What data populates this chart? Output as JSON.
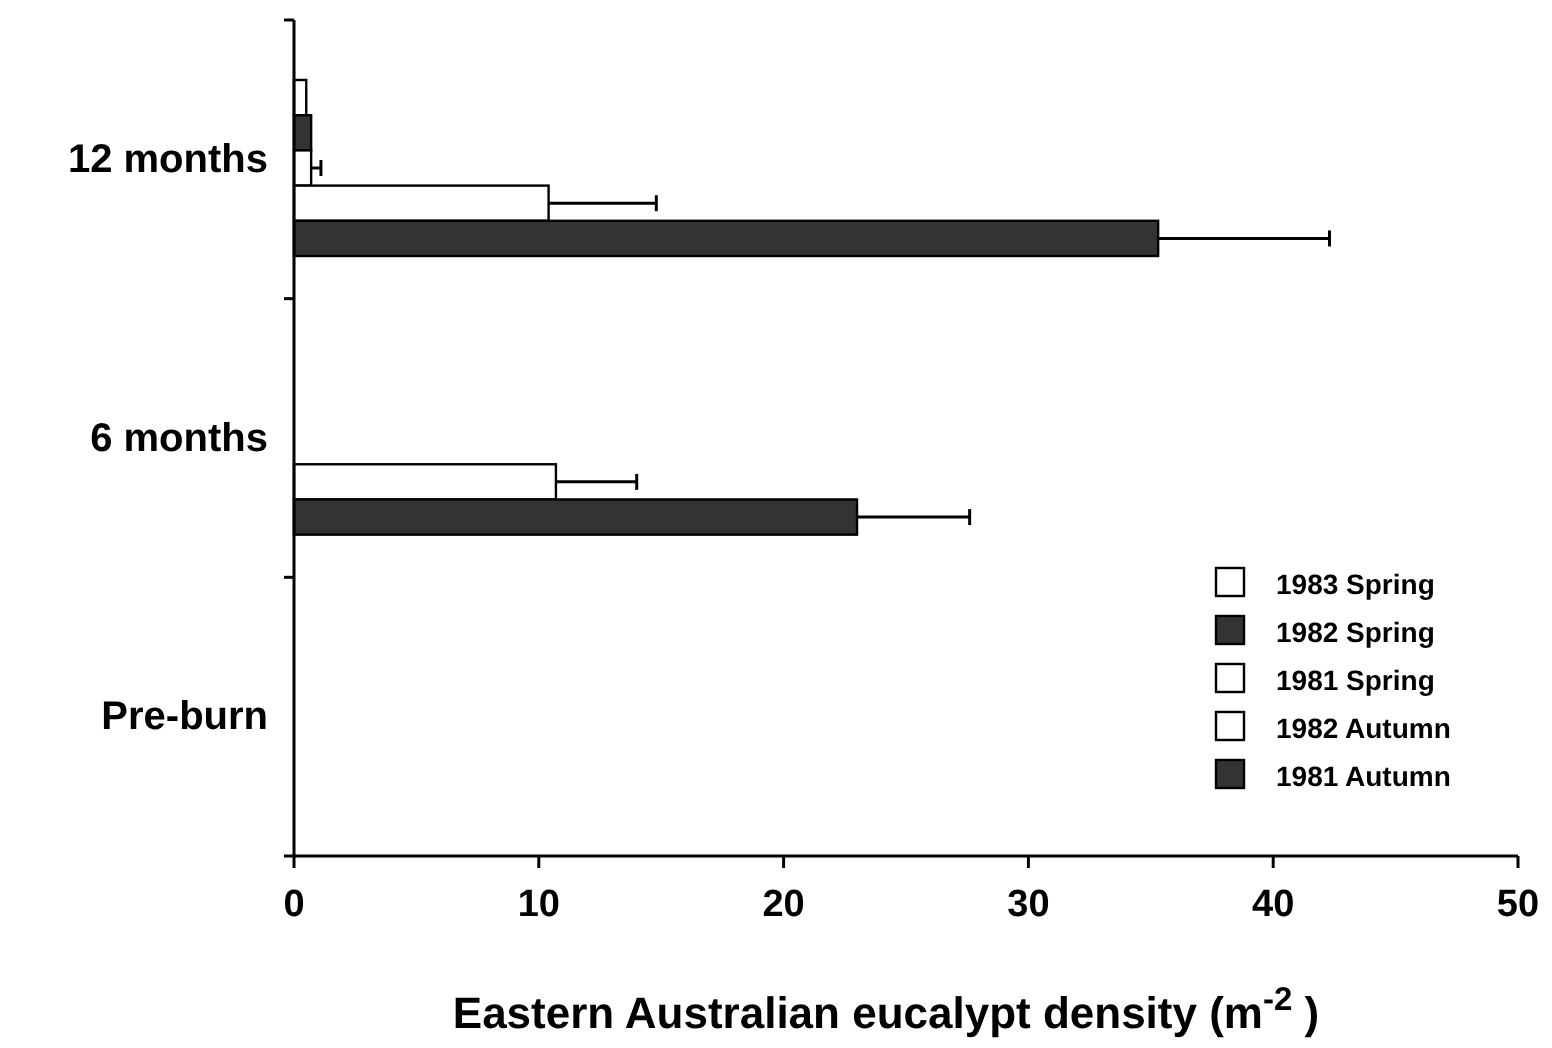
{
  "chart_data": {
    "type": "bar",
    "orientation": "horizontal",
    "xlabel": "Eastern Australian eucalypt density (m$^{-2}$ )",
    "categories": [
      "12 months",
      "6 months",
      "Pre-burn"
    ],
    "series": [
      {
        "name": "1983 Spring",
        "color": "#ffffff",
        "values": [
          0.5,
          null,
          null
        ]
      },
      {
        "name": "1982 Spring",
        "color": "#333333",
        "values": [
          0.7,
          null,
          null
        ]
      },
      {
        "name": "1981 Spring",
        "color": "#ffffff",
        "values": [
          0.7,
          null,
          null
        ],
        "errors": [
          [
            0.7,
            1.1
          ],
          null,
          null
        ]
      },
      {
        "name": "1982 Autumn",
        "color": "#ffffff",
        "values": [
          10.4,
          10.7,
          null
        ],
        "errors": [
          [
            10.4,
            14.8
          ],
          [
            10.7,
            14.0
          ],
          null
        ]
      },
      {
        "name": "1981 Autumn",
        "color": "#333333",
        "values": [
          35.3,
          23.0,
          null
        ],
        "errors": [
          [
            35.3,
            42.3
          ],
          [
            23.0,
            27.6
          ],
          null
        ]
      }
    ],
    "xlim": [
      0,
      50
    ],
    "xticks": [
      0,
      10,
      20,
      30,
      40,
      50
    ],
    "grid": false,
    "legend": "bottom right"
  }
}
